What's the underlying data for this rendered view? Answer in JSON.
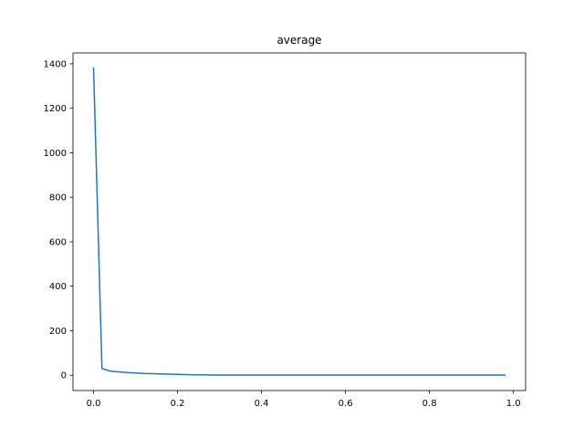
{
  "chart_data": {
    "type": "line",
    "title": "average",
    "xlabel": "",
    "ylabel": "",
    "xlim": [
      -0.049,
      1.029
    ],
    "ylim": [
      -69,
      1449
    ],
    "xticks": [
      0.0,
      0.2,
      0.4,
      0.6,
      0.8,
      1.0
    ],
    "xtick_labels": [
      "0.0",
      "0.2",
      "0.4",
      "0.6",
      "0.8",
      "1.0"
    ],
    "yticks": [
      0,
      200,
      400,
      600,
      800,
      1000,
      1200,
      1400
    ],
    "ytick_labels": [
      "0",
      "200",
      "400",
      "600",
      "800",
      "1000",
      "1200",
      "1400"
    ],
    "grid": false,
    "series": [
      {
        "color": "#1f77b4",
        "x": [
          0.0,
          0.02,
          0.04,
          0.06,
          0.08,
          0.1,
          0.12,
          0.14,
          0.16,
          0.18,
          0.2,
          0.22,
          0.24,
          0.26,
          0.28,
          0.3,
          0.32,
          0.34,
          0.36,
          0.38,
          0.4,
          0.42,
          0.44,
          0.46,
          0.48,
          0.5,
          0.52,
          0.54,
          0.56,
          0.58,
          0.6,
          0.62,
          0.64,
          0.66,
          0.68,
          0.7,
          0.72,
          0.74,
          0.76,
          0.78,
          0.8,
          0.82,
          0.84,
          0.86,
          0.88,
          0.9,
          0.92,
          0.94,
          0.96,
          0.98
        ],
        "y": [
          1380,
          30,
          18,
          15,
          12,
          10,
          8,
          7,
          6,
          5,
          4,
          3,
          2,
          2,
          1,
          1,
          0.5,
          0.5,
          0.5,
          0.5,
          0.5,
          0.5,
          0.5,
          0.5,
          0.5,
          0.5,
          0.5,
          0.5,
          0.5,
          0.5,
          0.5,
          0.5,
          0.5,
          0.5,
          0.5,
          0.5,
          0.5,
          0.5,
          0.5,
          0.5,
          0.5,
          0.5,
          0.5,
          0.5,
          0.5,
          0.5,
          0.5,
          0.5,
          0.5,
          0.5
        ]
      }
    ]
  }
}
